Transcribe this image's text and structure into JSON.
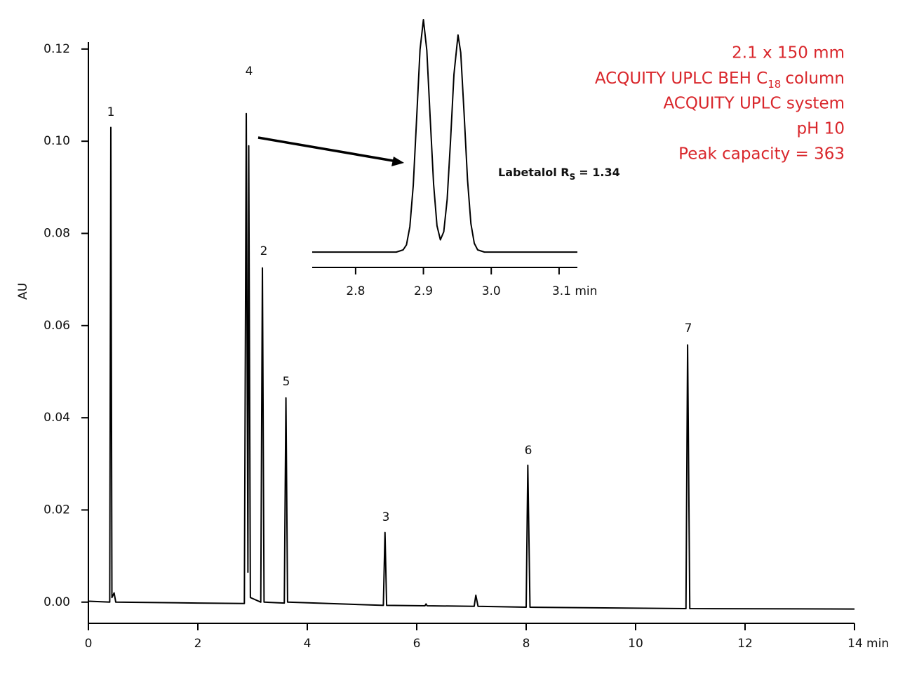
{
  "chart_data": [
    {
      "type": "line",
      "y_label": "AU",
      "xlim": [
        0,
        14
      ],
      "ylim": [
        -0.0046,
        0.1215
      ],
      "xticks": [
        0,
        2,
        4,
        6,
        8,
        10,
        12,
        {
          "value": 14,
          "label": "14 min"
        }
      ],
      "yticks": [
        {
          "value": 0,
          "label": "0.00"
        },
        {
          "value": 0.02,
          "label": "0.02"
        },
        {
          "value": 0.04,
          "label": "0.04"
        },
        {
          "value": 0.06,
          "label": "0.06"
        },
        {
          "value": 0.08,
          "label": "0.08"
        },
        {
          "value": 0.1,
          "label": "0.10"
        },
        {
          "value": 0.12,
          "label": "0.12"
        }
      ],
      "color": "#000000",
      "x": [
        0,
        0.39,
        0.41,
        0.43,
        0.47,
        0.5,
        2.0,
        2.85,
        2.885,
        2.915,
        2.93,
        2.96,
        3.15,
        3.18,
        3.21,
        3.58,
        3.61,
        3.64,
        5.39,
        5.42,
        5.45,
        6.15,
        6.17,
        6.19,
        7.05,
        7.08,
        7.12,
        8.0,
        8.03,
        8.07,
        10.92,
        10.95,
        10.99,
        14.0
      ],
      "values": [
        0.0002,
        0,
        0.103,
        0.001,
        0.002,
        0,
        -0.0002,
        -0.0003,
        0.106,
        0.0065,
        0.099,
        0.001,
        0,
        0.0725,
        0,
        -0.0002,
        0.0443,
        0,
        -0.0007,
        0.0151,
        -0.0007,
        -0.0008,
        -0.0004,
        -0.0008,
        -0.0009,
        0.0015,
        -0.0009,
        -0.0011,
        0.0297,
        -0.0011,
        -0.0014,
        0.0558,
        -0.0014,
        -0.0015
      ],
      "peak_labels": [
        "1",
        "4",
        "2",
        "5",
        "3",
        "6",
        "7"
      ],
      "annotation": {
        "dimensions": "2.1 x 150 mm",
        "column": {
          "text": "ACQUITY UPLC BEH C",
          "subscript": "18",
          "suffix": "column"
        },
        "system": "ACQUITY UPLC system",
        "ph": "pH 10",
        "capacity": "Peak capacity = 363"
      }
    },
    {
      "type": "line",
      "xlim": [
        2.736,
        3.127
      ],
      "ylim": [
        -0.007,
        0.11
      ],
      "xticks": [
        2.8,
        2.9,
        {
          "value": 3.0,
          "label": "3.0"
        },
        {
          "value": 3.1,
          "label": "3.1 min"
        }
      ],
      "color": "#000000",
      "x": [
        2.736,
        2.86,
        2.87,
        2.875,
        2.88,
        2.885,
        2.89,
        2.895,
        2.9,
        2.905,
        2.91,
        2.915,
        2.92,
        2.925,
        2.93,
        2.935,
        2.94,
        2.945,
        2.951,
        2.955,
        2.96,
        2.965,
        2.97,
        2.975,
        2.98,
        2.99,
        3.127
      ],
      "values": [
        0,
        0,
        0.001,
        0.0033,
        0.0116,
        0.0304,
        0.061,
        0.0923,
        0.106,
        0.092,
        0.061,
        0.031,
        0.012,
        0.0056,
        0.0093,
        0.024,
        0.051,
        0.081,
        0.099,
        0.091,
        0.063,
        0.033,
        0.013,
        0.004,
        0.001,
        0,
        0
      ],
      "label": {
        "text": "Labetalol R",
        "subscript": "S",
        "suffix": "= 1.34"
      }
    }
  ]
}
